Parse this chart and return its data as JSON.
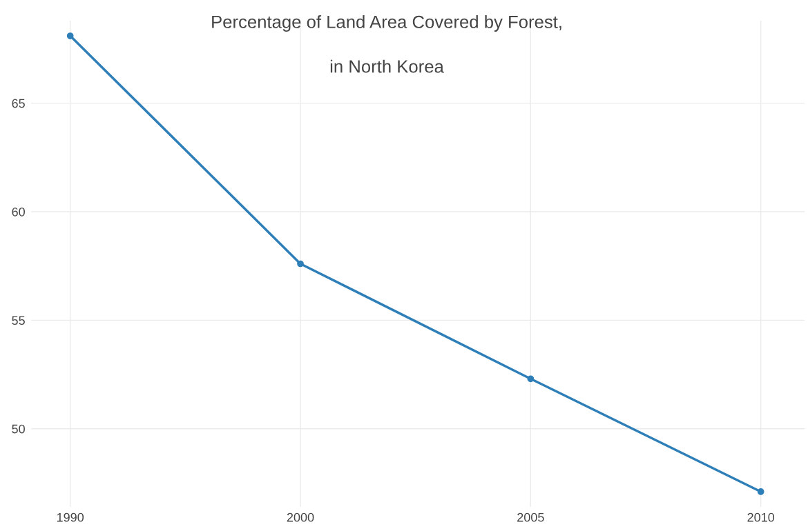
{
  "chart_data": {
    "type": "line",
    "title": "Percentage of Land Area Covered by Forest,\n\nin North Korea",
    "categories": [
      "1990",
      "2000",
      "2005",
      "2010"
    ],
    "series": [
      {
        "color": "#2e7eb8",
        "values": [
          68.1,
          57.6,
          52.3,
          47.1
        ]
      }
    ],
    "ylim": [
      46.4,
      68.8
    ],
    "yticks": [
      50,
      55,
      60,
      65
    ],
    "grid": true,
    "marker": "circle",
    "line_style": "solid"
  }
}
